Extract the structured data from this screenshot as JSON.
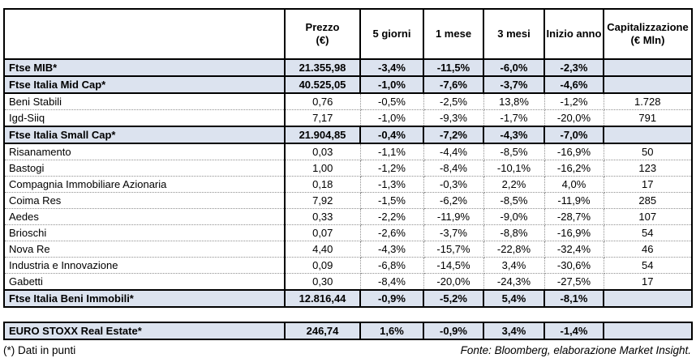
{
  "chart_data": {
    "type": "table",
    "title": "",
    "columns": [
      "",
      "Prezzo (€)",
      "5 giorni",
      "1 mese",
      "3 mesi",
      "Inizio anno",
      "Capitalizzazione (€ Mln)"
    ],
    "rows": [
      {
        "style": "index",
        "cells": [
          "Ftse MIB*",
          "21.355,98",
          "-3,4%",
          "-11,5%",
          "-6,0%",
          "-2,3%",
          ""
        ]
      },
      {
        "style": "index",
        "cells": [
          "Ftse Italia Mid Cap*",
          "40.525,05",
          "-1,0%",
          "-7,6%",
          "-3,7%",
          "-4,6%",
          ""
        ]
      },
      {
        "style": "stock",
        "cells": [
          "Beni Stabili",
          "0,76",
          "-0,5%",
          "-2,5%",
          "13,8%",
          "-1,2%",
          "1.728"
        ]
      },
      {
        "style": "stock",
        "cells": [
          "Igd-Siiq",
          "7,17",
          "-1,0%",
          "-9,3%",
          "-1,7%",
          "-20,0%",
          "791"
        ]
      },
      {
        "style": "index",
        "cells": [
          "Ftse Italia Small Cap*",
          "21.904,85",
          "-0,4%",
          "-7,2%",
          "-4,3%",
          "-7,0%",
          ""
        ]
      },
      {
        "style": "stock",
        "cells": [
          "Risanamento",
          "0,03",
          "-1,1%",
          "-4,4%",
          "-8,5%",
          "-16,9%",
          "50"
        ]
      },
      {
        "style": "stock",
        "cells": [
          "Bastogi",
          "1,00",
          "-1,2%",
          "-8,4%",
          "-10,1%",
          "-16,2%",
          "123"
        ]
      },
      {
        "style": "stock",
        "cells": [
          "Compagnia Immobiliare Azionaria",
          "0,18",
          "-1,3%",
          "-0,3%",
          "2,2%",
          "4,0%",
          "17"
        ]
      },
      {
        "style": "stock",
        "cells": [
          "Coima Res",
          "7,92",
          "-1,5%",
          "-6,2%",
          "-8,5%",
          "-11,9%",
          "285"
        ]
      },
      {
        "style": "stock",
        "cells": [
          "Aedes",
          "0,33",
          "-2,2%",
          "-11,9%",
          "-9,0%",
          "-28,7%",
          "107"
        ]
      },
      {
        "style": "stock",
        "cells": [
          "Brioschi",
          "0,07",
          "-2,6%",
          "-3,7%",
          "-8,8%",
          "-16,9%",
          "54"
        ]
      },
      {
        "style": "stock",
        "cells": [
          "Nova Re",
          "4,40",
          "-4,3%",
          "-15,7%",
          "-22,8%",
          "-32,4%",
          "46"
        ]
      },
      {
        "style": "stock",
        "cells": [
          "Industria e Innovazione",
          "0,09",
          "-6,8%",
          "-14,5%",
          "3,4%",
          "-30,6%",
          "54"
        ]
      },
      {
        "style": "stock",
        "cells": [
          "Gabetti",
          "0,30",
          "-8,4%",
          "-20,0%",
          "-24,3%",
          "-27,5%",
          "17"
        ]
      },
      {
        "style": "index",
        "cells": [
          "Ftse Italia Beni Immobili*",
          "12.816,44",
          "-0,9%",
          "-5,2%",
          "5,4%",
          "-8,1%",
          ""
        ]
      }
    ],
    "separate_rows": [
      {
        "style": "index",
        "cells": [
          "EURO STOXX Real Estate*",
          "246,74",
          "1,6%",
          "-0,9%",
          "3,4%",
          "-1,4%",
          ""
        ]
      }
    ],
    "footnote": "(*) Dati in punti",
    "source": "Fonte: Bloomberg, elaborazione Market Insight.",
    "layout": {
      "grid": "solid black borders on index rows, dotted gray on stock rows",
      "legend_position": "none"
    }
  },
  "header": {
    "cols": [
      {
        "l1": "Prezzo",
        "l2": "(€)"
      },
      {
        "l1": "5 giorni",
        "l2": ""
      },
      {
        "l1": "1 mese",
        "l2": ""
      },
      {
        "l1": "3 mesi",
        "l2": ""
      },
      {
        "l1": "Inizio anno",
        "l2": ""
      },
      {
        "l1": "Capitalizzazione",
        "l2": "(€ Mln)"
      }
    ]
  },
  "colors": {
    "row_highlight": "#dce3ef",
    "border": "#000000",
    "dotted_border": "#8f8f8f",
    "background": "#ffffff"
  }
}
